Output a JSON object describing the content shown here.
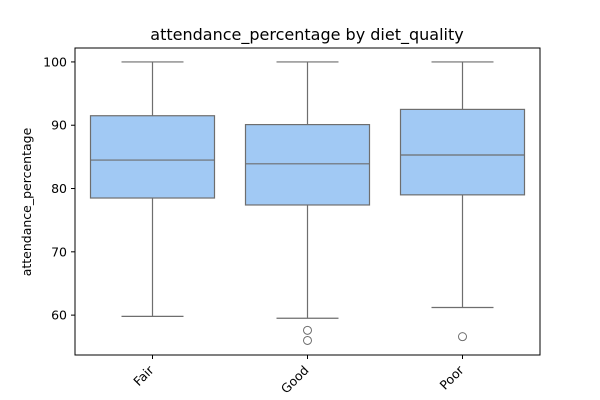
{
  "chart_data": {
    "type": "boxplot",
    "title": "attendance_percentage by diet_quality",
    "xlabel": "",
    "ylabel": "attendance_percentage",
    "ylim": [
      53.7,
      102.2
    ],
    "yticks": [
      60,
      70,
      80,
      90,
      100
    ],
    "categories": [
      "Fair",
      "Good",
      "Poor"
    ],
    "boxes": [
      {
        "category": "Fair",
        "whisker_low": 59.8,
        "q1": 78.5,
        "median": 84.5,
        "q3": 91.5,
        "whisker_high": 100.0,
        "outliers": []
      },
      {
        "category": "Good",
        "whisker_low": 59.5,
        "q1": 77.4,
        "median": 83.9,
        "q3": 90.1,
        "whisker_high": 100.0,
        "outliers": [
          57.6,
          56.0
        ]
      },
      {
        "category": "Poor",
        "whisker_low": 61.2,
        "q1": 79.0,
        "median": 85.3,
        "q3": 92.5,
        "whisker_high": 100.0,
        "outliers": [
          56.6
        ]
      }
    ],
    "box_color": "#a1c9f4",
    "line_color": "#6e6e6e",
    "grid": false,
    "xtick_rotation": 45
  }
}
